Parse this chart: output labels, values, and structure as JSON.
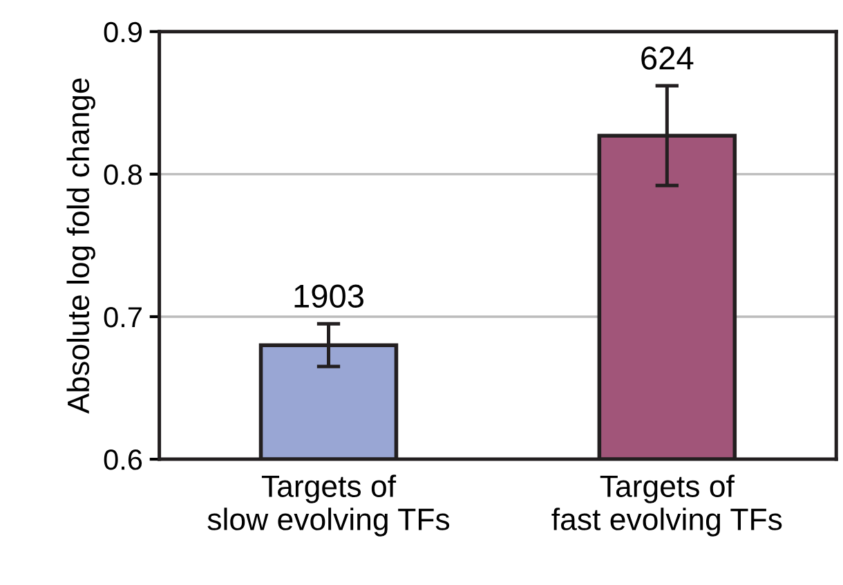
{
  "chart_data": {
    "type": "bar",
    "ylabel": "Absolute log fold change",
    "categories": [
      "Targets of\nslow evolving TFs",
      "Targets of\nfast evolving TFs"
    ],
    "values": [
      0.68,
      0.827
    ],
    "colors": [
      "#99a6d4",
      "#a15579"
    ],
    "errors": [
      0.015,
      0.035
    ],
    "ylim": [
      0.6,
      0.9
    ],
    "yticks": [
      0.6,
      0.7,
      0.8,
      0.9
    ],
    "grid": "y",
    "annotations": [
      "1903",
      "624"
    ]
  }
}
